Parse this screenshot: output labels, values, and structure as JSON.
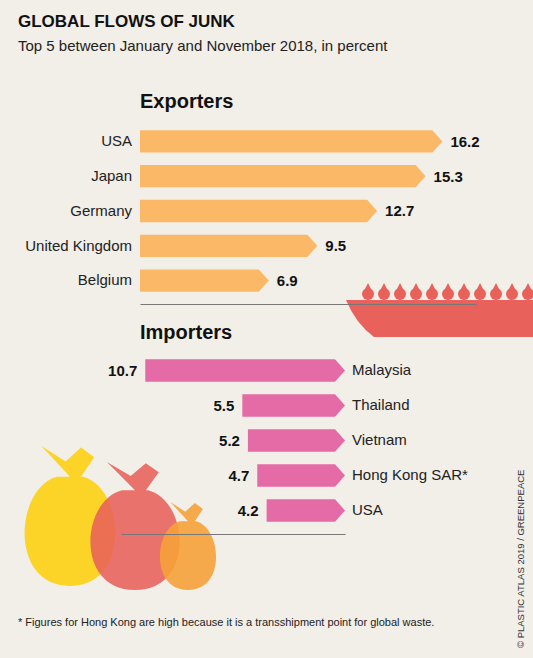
{
  "title": "GLOBAL FLOWS OF JUNK",
  "subtitle": "Top 5 between January and November 2018, in percent",
  "note": "* Figures for Hong Kong are high because it is a transshipment point for global waste.",
  "source": "© PLASTIC ATLAS 2019 / GREENPEACE",
  "chart_data": [
    {
      "type": "bar",
      "title": "Exporters",
      "orientation": "horizontal",
      "categories": [
        "USA",
        "Japan",
        "Germany",
        "United Kingdom",
        "Belgium"
      ],
      "values": [
        16.2,
        15.3,
        12.7,
        9.5,
        6.9
      ],
      "color": "#fbb866",
      "xlim": [
        0,
        18
      ],
      "data_labels": true,
      "tick_labels": "y"
    },
    {
      "type": "bar",
      "title": "Importers",
      "orientation": "horizontal",
      "categories": [
        "Malaysia",
        "Thailand",
        "Vietnam",
        "Hong Kong SAR*",
        "USA"
      ],
      "values": [
        10.7,
        5.5,
        5.2,
        4.7,
        4.2
      ],
      "color": "#e56ba6",
      "xlim": [
        0,
        12
      ],
      "data_labels": true,
      "tick_labels": "y"
    }
  ]
}
